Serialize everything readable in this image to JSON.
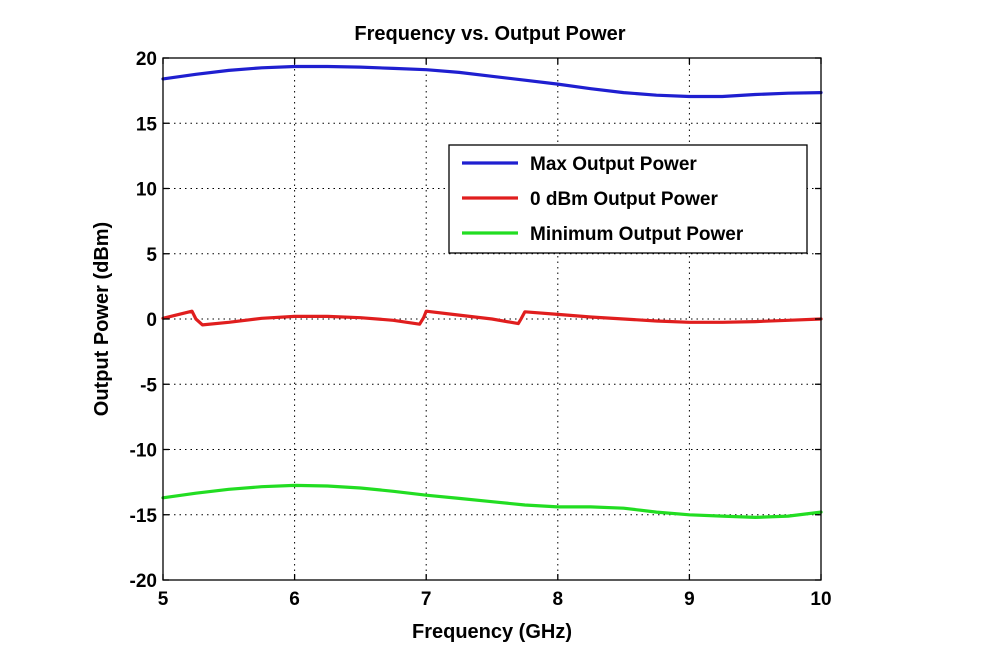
{
  "chart_data": {
    "type": "line",
    "title": "Frequency vs. Output Power",
    "xlabel": "Frequency (GHz)",
    "ylabel": "Output Power (dBm)",
    "xlim": [
      5,
      10
    ],
    "ylim": [
      -20,
      20
    ],
    "xticks": [
      5,
      6,
      7,
      8,
      9,
      10
    ],
    "yticks": [
      -20,
      -15,
      -10,
      -5,
      0,
      5,
      10,
      15,
      20
    ],
    "grid": true,
    "legend_position": "top-right",
    "series": [
      {
        "name": "Max Output Power",
        "color": "#1f1fd0",
        "x": [
          5.0,
          5.25,
          5.5,
          5.75,
          6.0,
          6.25,
          6.5,
          6.75,
          7.0,
          7.25,
          7.5,
          7.75,
          8.0,
          8.25,
          8.5,
          8.75,
          9.0,
          9.25,
          9.5,
          9.75,
          10.0
        ],
        "y": [
          18.4,
          18.75,
          19.05,
          19.25,
          19.35,
          19.35,
          19.3,
          19.2,
          19.1,
          18.9,
          18.6,
          18.3,
          18.0,
          17.65,
          17.35,
          17.15,
          17.05,
          17.05,
          17.2,
          17.3,
          17.35
        ]
      },
      {
        "name": "0 dBm Output Power",
        "color": "#e01e1e",
        "x": [
          5.0,
          5.1,
          5.22,
          5.25,
          5.3,
          5.5,
          5.75,
          6.0,
          6.25,
          6.5,
          6.75,
          6.95,
          6.98,
          7.0,
          7.25,
          7.5,
          7.7,
          7.72,
          7.75,
          8.0,
          8.25,
          8.5,
          8.75,
          9.0,
          9.25,
          9.5,
          9.75,
          10.0
        ],
        "y": [
          0.05,
          0.3,
          0.6,
          0.0,
          -0.45,
          -0.25,
          0.05,
          0.2,
          0.2,
          0.1,
          -0.1,
          -0.4,
          0.1,
          0.6,
          0.3,
          0.0,
          -0.35,
          0.0,
          0.55,
          0.35,
          0.15,
          0.0,
          -0.15,
          -0.25,
          -0.25,
          -0.2,
          -0.1,
          0.0
        ]
      },
      {
        "name": "Minimum Output Power",
        "color": "#22dd22",
        "x": [
          5.0,
          5.25,
          5.5,
          5.75,
          6.0,
          6.25,
          6.5,
          6.75,
          7.0,
          7.25,
          7.5,
          7.75,
          8.0,
          8.25,
          8.5,
          8.75,
          9.0,
          9.25,
          9.5,
          9.75,
          10.0
        ],
        "y": [
          -13.7,
          -13.35,
          -13.05,
          -12.85,
          -12.75,
          -12.8,
          -12.95,
          -13.2,
          -13.5,
          -13.75,
          -14.0,
          -14.25,
          -14.4,
          -14.4,
          -14.5,
          -14.8,
          -15.0,
          -15.1,
          -15.2,
          -15.1,
          -14.8
        ]
      }
    ]
  }
}
